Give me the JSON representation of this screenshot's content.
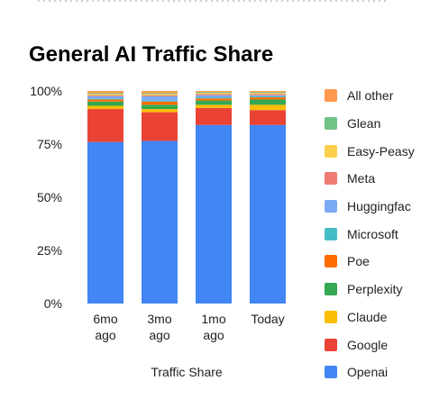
{
  "chart_data": {
    "type": "bar",
    "stacked": true,
    "title": "General AI Traffic Share",
    "xlabel": "Traffic Share",
    "ylabel": "",
    "ylim": [
      0,
      100
    ],
    "yticks": [
      "100%",
      "75%",
      "50%",
      "25%",
      "0%"
    ],
    "categories": [
      "6mo ago",
      "3mo ago",
      "1mo ago",
      "Today"
    ],
    "legend_position": "right",
    "grid": false,
    "series": [
      {
        "name": "Openai",
        "color": "#4285f4",
        "values": [
          76.0,
          76.5,
          84.0,
          84.0
        ]
      },
      {
        "name": "Google",
        "color": "#ea4335",
        "values": [
          15.5,
          13.5,
          8.0,
          7.0
        ]
      },
      {
        "name": "Claude",
        "color": "#fbbc04",
        "values": [
          1.5,
          1.5,
          1.5,
          2.5
        ]
      },
      {
        "name": "Perplexity",
        "color": "#34a853",
        "values": [
          2.0,
          2.0,
          2.0,
          2.5
        ]
      },
      {
        "name": "Poe",
        "color": "#ff6d01",
        "values": [
          1.0,
          1.5,
          1.0,
          1.0
        ]
      },
      {
        "name": "Microsoft",
        "color": "#46bdc6",
        "values": [
          0.5,
          0.5,
          0.5,
          0.5
        ]
      },
      {
        "name": "Huggingfac",
        "color": "#7baaf7",
        "values": [
          1.0,
          2.0,
          1.0,
          0.5
        ]
      },
      {
        "name": "Meta",
        "color": "#f07b72",
        "values": [
          0.5,
          0.5,
          0.5,
          0.5
        ]
      },
      {
        "name": "Easy-Peasy",
        "color": "#fcd04f",
        "values": [
          0.5,
          0.5,
          0.5,
          0.5
        ]
      },
      {
        "name": "Glean",
        "color": "#71c287",
        "values": [
          0.5,
          0.5,
          0.5,
          0.5
        ]
      },
      {
        "name": "All other",
        "color": "#ff994d",
        "values": [
          1.0,
          1.0,
          0.5,
          0.5
        ]
      }
    ]
  }
}
